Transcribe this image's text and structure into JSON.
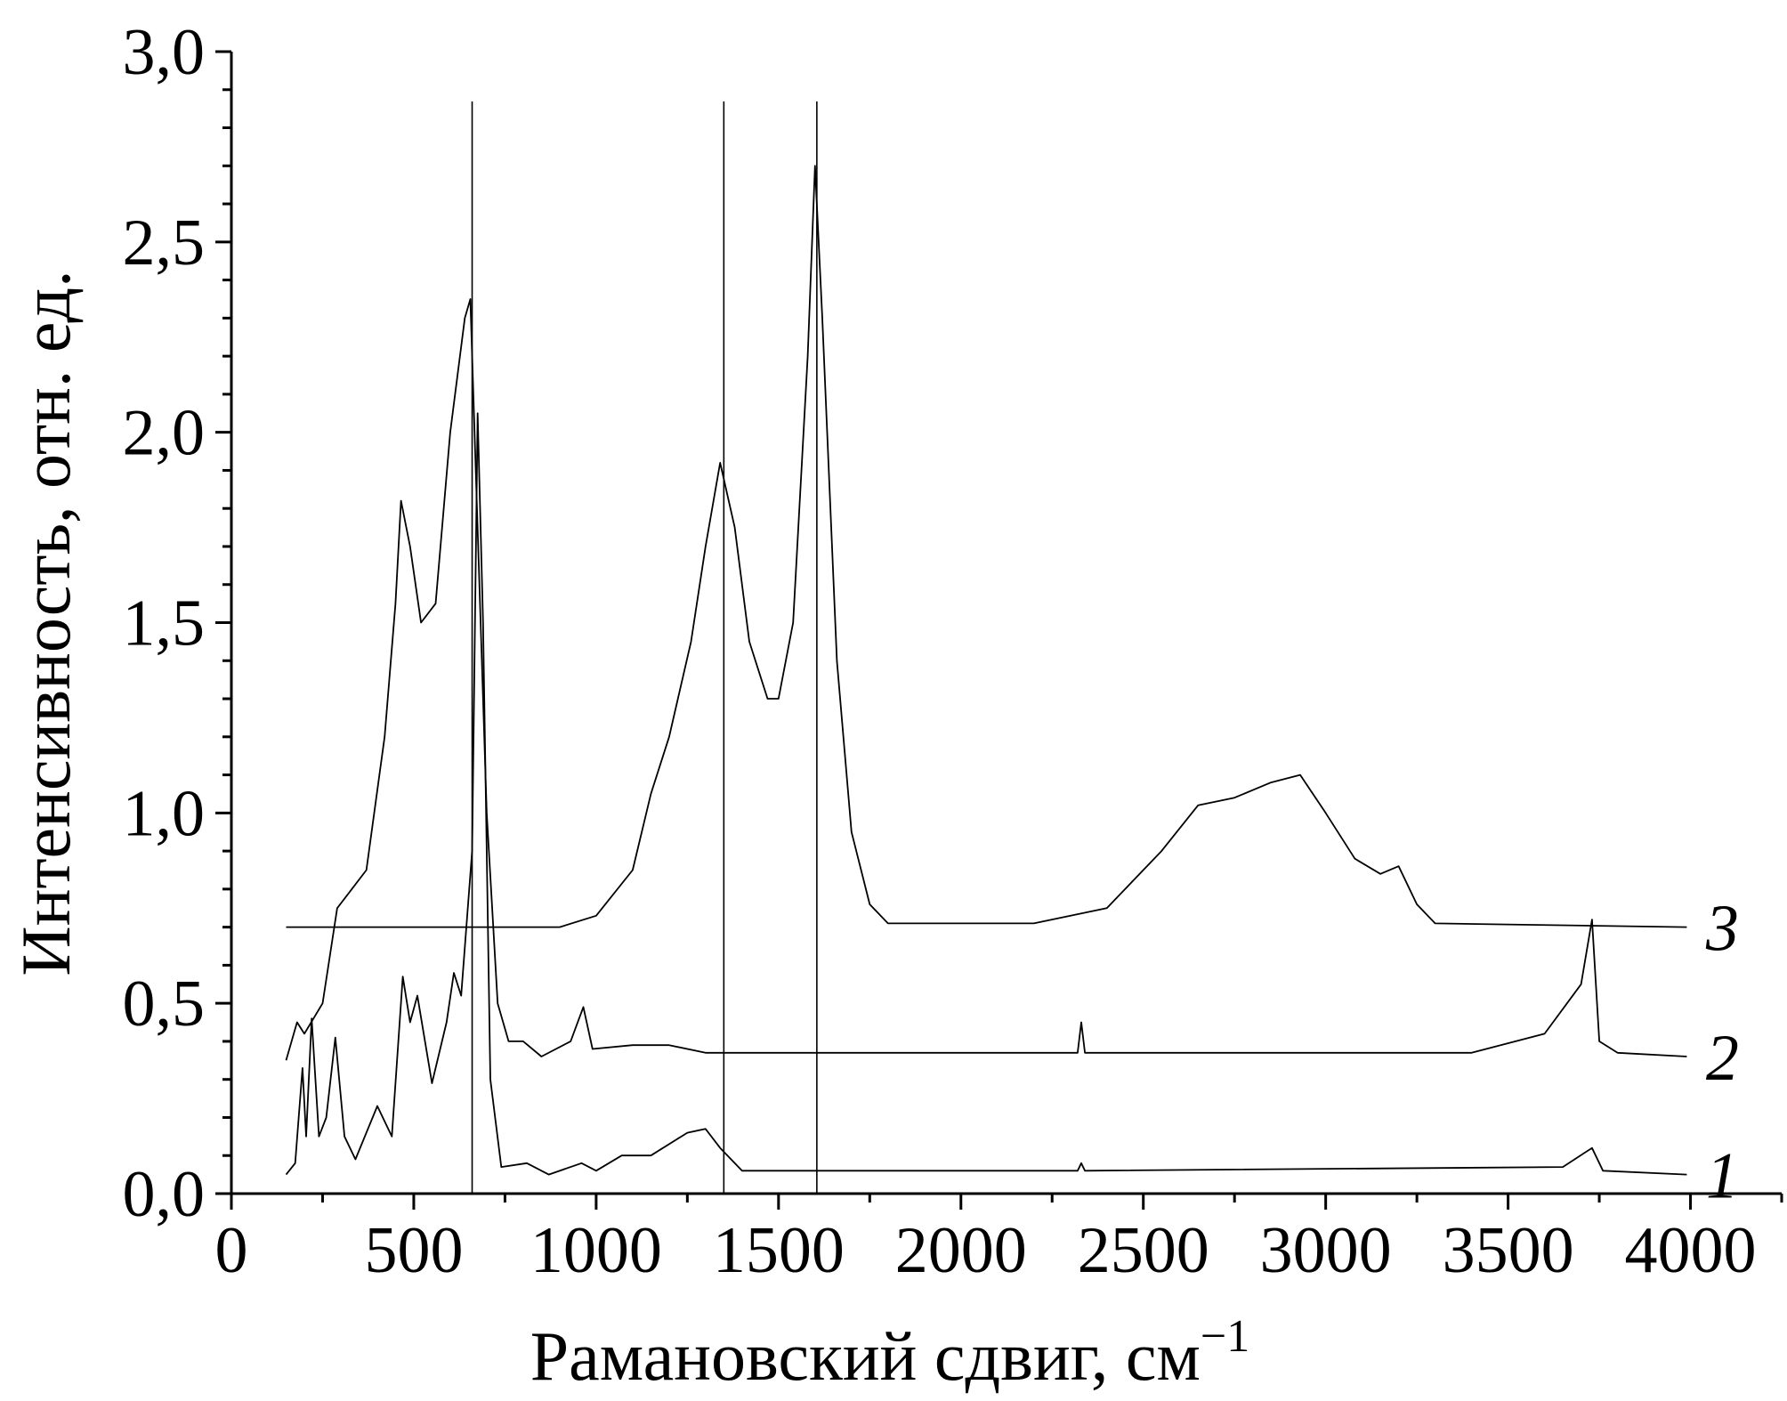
{
  "chart_data": {
    "type": "line",
    "xlabel": "Рамановский сдвиг, см",
    "xlabel_sup": "−1",
    "ylabel": "Интенсивность, отн. ед.",
    "xlim": [
      0,
      4250
    ],
    "ylim": [
      0,
      3
    ],
    "xticks": [
      0,
      500,
      1000,
      1500,
      2000,
      2500,
      3000,
      3500,
      4000
    ],
    "minor_xticks": [
      250,
      750,
      1250,
      1750,
      2250,
      2750,
      3250,
      3750,
      4250
    ],
    "yticks": [
      {
        "value": 0,
        "label": "0,0"
      },
      {
        "value": 0.5,
        "label": "0,5"
      },
      {
        "value": 1,
        "label": "1,0"
      },
      {
        "value": 1.5,
        "label": "1,5"
      },
      {
        "value": 2,
        "label": "2,0"
      },
      {
        "value": 2.5,
        "label": "2,5"
      },
      {
        "value": 3,
        "label": "3,0"
      }
    ],
    "minor_yticks": [
      0.1,
      0.2,
      0.3,
      0.4,
      0.6,
      0.7,
      0.8,
      0.9,
      1.1,
      1.2,
      1.3,
      1.4,
      1.6,
      1.7,
      1.8,
      1.9,
      2.1,
      2.2,
      2.3,
      2.4,
      2.6,
      2.7,
      2.8,
      2.9
    ],
    "vlines": [
      660,
      1350,
      1605
    ],
    "series": [
      {
        "name": "1",
        "color": "#000000",
        "x": [
          150,
          175,
          195,
          205,
          220,
          240,
          260,
          285,
          310,
          340,
          400,
          440,
          470,
          490,
          510,
          550,
          590,
          610,
          630,
          660,
          675,
          690,
          710,
          740,
          810,
          870,
          960,
          1000,
          1070,
          1150,
          1250,
          1300,
          1340,
          1400,
          2320,
          2330,
          2340,
          3650,
          3730,
          3760,
          3990
        ],
        "values": [
          0.05,
          0.08,
          0.33,
          0.15,
          0.46,
          0.15,
          0.2,
          0.41,
          0.15,
          0.09,
          0.23,
          0.15,
          0.57,
          0.45,
          0.52,
          0.29,
          0.45,
          0.58,
          0.52,
          0.9,
          2.05,
          1.5,
          0.3,
          0.07,
          0.08,
          0.05,
          0.08,
          0.06,
          0.1,
          0.1,
          0.16,
          0.17,
          0.12,
          0.06,
          0.06,
          0.08,
          0.06,
          0.07,
          0.12,
          0.06,
          0.05
        ]
      },
      {
        "name": "2",
        "color": "#000000",
        "x": [
          150,
          180,
          200,
          250,
          290,
          330,
          370,
          420,
          450,
          465,
          490,
          520,
          560,
          600,
          640,
          655,
          670,
          700,
          730,
          760,
          800,
          850,
          930,
          965,
          990,
          1100,
          1200,
          1300,
          2320,
          2330,
          2340,
          3400,
          3600,
          3700,
          3730,
          3750,
          3800,
          3990
        ],
        "values": [
          0.35,
          0.45,
          0.42,
          0.5,
          0.75,
          0.8,
          0.85,
          1.2,
          1.55,
          1.82,
          1.7,
          1.5,
          1.55,
          2.0,
          2.3,
          2.35,
          1.9,
          1.0,
          0.5,
          0.4,
          0.4,
          0.36,
          0.4,
          0.49,
          0.38,
          0.39,
          0.39,
          0.37,
          0.37,
          0.45,
          0.37,
          0.37,
          0.42,
          0.55,
          0.72,
          0.4,
          0.37,
          0.36
        ]
      },
      {
        "name": "3",
        "color": "#000000",
        "x": [
          150,
          900,
          1000,
          1100,
          1150,
          1200,
          1260,
          1300,
          1340,
          1380,
          1420,
          1470,
          1500,
          1540,
          1580,
          1600,
          1620,
          1660,
          1700,
          1750,
          1800,
          2200,
          2400,
          2550,
          2650,
          2750,
          2850,
          2930,
          3000,
          3080,
          3150,
          3200,
          3250,
          3300,
          3990
        ],
        "values": [
          0.7,
          0.7,
          0.73,
          0.85,
          1.05,
          1.2,
          1.45,
          1.7,
          1.92,
          1.75,
          1.45,
          1.3,
          1.3,
          1.5,
          2.2,
          2.7,
          2.3,
          1.4,
          0.95,
          0.76,
          0.71,
          0.71,
          0.75,
          0.9,
          1.02,
          1.04,
          1.08,
          1.1,
          1.0,
          0.88,
          0.84,
          0.86,
          0.76,
          0.71,
          0.7
        ]
      }
    ]
  }
}
